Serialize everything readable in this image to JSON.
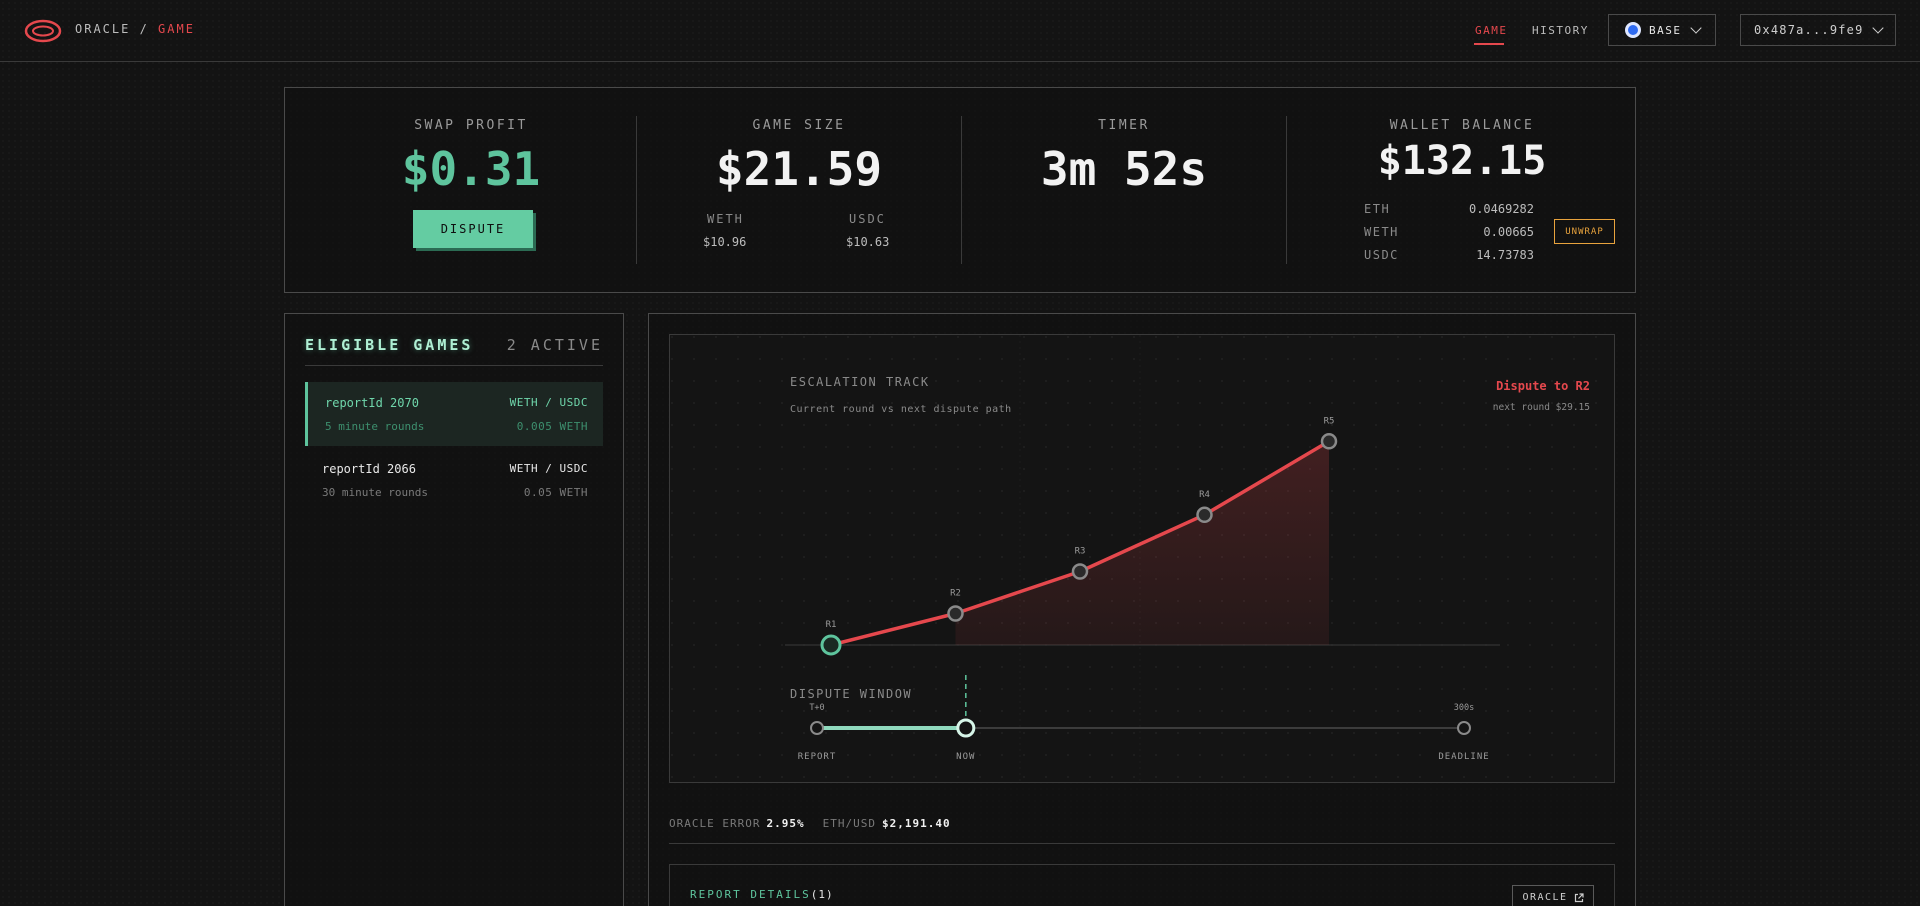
{
  "header": {
    "brand_prefix": "ORACLE /",
    "brand_page": "GAME",
    "nav": {
      "game": "GAME",
      "history": "HISTORY"
    },
    "network": "BASE",
    "wallet": "0x487a...9fe9"
  },
  "stats": {
    "swap_profit": {
      "label": "SWAP PROFIT",
      "value": "$0.31",
      "button": "DISPUTE"
    },
    "game_size": {
      "label": "GAME SIZE",
      "value": "$21.59",
      "weth_label": "WETH",
      "weth_value": "$10.96",
      "usdc_label": "USDC",
      "usdc_value": "$10.63"
    },
    "timer": {
      "label": "TIMER",
      "value": "3m 52s"
    },
    "wallet_balance": {
      "label": "WALLET BALANCE",
      "value": "$132.15",
      "rows": [
        {
          "k": "ETH",
          "v": "0.0469282"
        },
        {
          "k": "WETH",
          "v": "0.00665"
        },
        {
          "k": "USDC",
          "v": "14.73783"
        }
      ],
      "unwrap": "UNWRAP"
    }
  },
  "games": {
    "title": "ELIGIBLE GAMES",
    "count": "2 ACTIVE",
    "items": [
      {
        "id": "reportId 2070",
        "pair": "WETH / USDC",
        "round": "5 minute rounds",
        "amount": "0.005 WETH",
        "active": true
      },
      {
        "id": "reportId 2066",
        "pair": "WETH / USDC",
        "round": "30 minute rounds",
        "amount": "0.05 WETH",
        "active": false
      }
    ]
  },
  "chart_data": {
    "type": "line",
    "title": "ESCALATION TRACK",
    "subtitle": "Current round vs next dispute path",
    "categories": [
      "R1",
      "R2",
      "R3",
      "R4",
      "R5"
    ],
    "values": [
      0,
      0.15,
      0.35,
      0.62,
      0.97
    ],
    "current_index": 0,
    "callout": {
      "title": "Dispute to R2",
      "detail": "next round $29.15"
    }
  },
  "dispute_window": {
    "title": "DISPUTE WINDOW",
    "start_label": "T+0",
    "end_label": "300s",
    "markers": [
      "REPORT",
      "NOW",
      "DEADLINE"
    ],
    "progress": 0.23
  },
  "info": {
    "oracle_error_label": "ORACLE ERROR",
    "oracle_error": "2.95%",
    "ethusd_label": "ETH/USD",
    "ethusd": "$2,191.40"
  },
  "report": {
    "title": "REPORT DETAILS",
    "count": "(1)",
    "oracle_button": "ORACLE"
  },
  "colors": {
    "accent_green": "#5ec49d",
    "accent_red": "#e5484d",
    "warning": "#e8a33d",
    "network": "#2f6bf2"
  }
}
